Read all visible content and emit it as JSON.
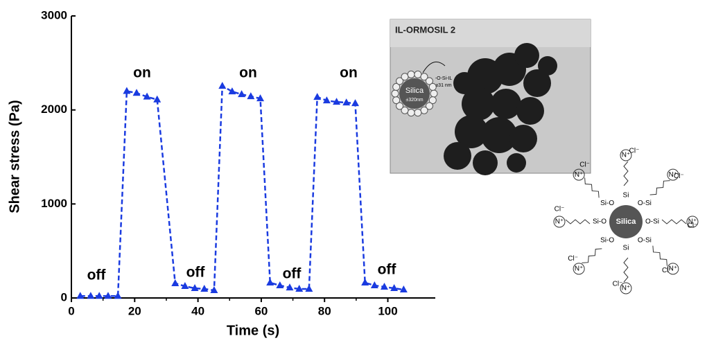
{
  "chart_data": {
    "type": "line",
    "xlabel": "Time (s)",
    "ylabel": "Shear stress (Pa)",
    "x": [
      2.8,
      6.1,
      8.8,
      11.6,
      14.7,
      17.5,
      20.6,
      23.9,
      27.1,
      32.8,
      35.9,
      39,
      42,
      45.1,
      47.7,
      50.8,
      53.8,
      56.7,
      59.7,
      62.8,
      65.9,
      69,
      72,
      75.1,
      77.7,
      80.7,
      83.8,
      86.9,
      89.7,
      92.8,
      95.8,
      98.9,
      102,
      105
    ],
    "values": [
      20,
      20,
      20,
      20,
      20,
      2200,
      2180,
      2140,
      2110,
      155,
      125,
      103,
      96,
      81,
      2255,
      2196,
      2166,
      2144,
      2122,
      162,
      133,
      110,
      96,
      96,
      2137,
      2100,
      2085,
      2078,
      2070,
      162,
      133,
      118,
      103,
      88
    ],
    "color": "#1a3be0",
    "xlim": [
      0,
      115
    ],
    "ylim": [
      0,
      3000
    ],
    "xticks": [
      0,
      20,
      40,
      60,
      80,
      100
    ],
    "yticks": [
      0,
      1000,
      2000,
      3000
    ],
    "annotations": [
      "off",
      "on",
      "off",
      "on",
      "off",
      "on",
      "off"
    ],
    "inset": {
      "title": "IL-ORMOSIL 2",
      "core": "Silica",
      "core_size": "±320nm",
      "shell": "-O-Si-IL",
      "shell_size": "±31 nm"
    },
    "molecule": {
      "core": "Silica",
      "links": [
        "O-Si",
        "O-Si",
        "Si",
        "Si-O",
        "Si-O",
        "Si-O",
        "Si",
        "O-Si"
      ],
      "cation": "N⁺",
      "counterion": "Cl⁻"
    }
  }
}
